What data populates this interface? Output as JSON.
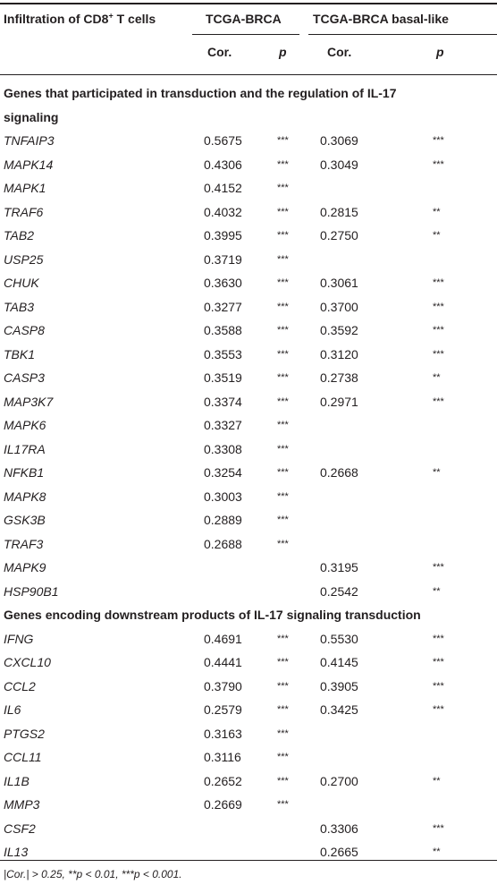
{
  "header": {
    "col0_text": "Infiltration of CD8",
    "col0_sup": "+",
    "col0_tail": " T cells",
    "group1": "TCGA-BRCA",
    "group2": "TCGA-BRCA basal-like",
    "cor_label": "Cor.",
    "p_label": "p"
  },
  "sections": [
    {
      "title_line1": "Genes that participated in transduction and the regulation of IL-17",
      "title_line2": "signaling",
      "rows": [
        {
          "gene": "TNFAIP3",
          "cor1": "0.5675",
          "p1": "***",
          "cor2": "0.3069",
          "p2": "***"
        },
        {
          "gene": "MAPK14",
          "cor1": "0.4306",
          "p1": "***",
          "cor2": "0.3049",
          "p2": "***"
        },
        {
          "gene": "MAPK1",
          "cor1": "0.4152",
          "p1": "***",
          "cor2": "",
          "p2": ""
        },
        {
          "gene": "TRAF6",
          "cor1": "0.4032",
          "p1": "***",
          "cor2": "0.2815",
          "p2": "**"
        },
        {
          "gene": "TAB2",
          "cor1": "0.3995",
          "p1": "***",
          "cor2": "0.2750",
          "p2": "**"
        },
        {
          "gene": "USP25",
          "cor1": "0.3719",
          "p1": "***",
          "cor2": "",
          "p2": ""
        },
        {
          "gene": "CHUK",
          "cor1": "0.3630",
          "p1": "***",
          "cor2": "0.3061",
          "p2": "***"
        },
        {
          "gene": "TAB3",
          "cor1": "0.3277",
          "p1": "***",
          "cor2": "0.3700",
          "p2": "***"
        },
        {
          "gene": "CASP8",
          "cor1": "0.3588",
          "p1": "***",
          "cor2": "0.3592",
          "p2": "***"
        },
        {
          "gene": "TBK1",
          "cor1": "0.3553",
          "p1": "***",
          "cor2": "0.3120",
          "p2": "***"
        },
        {
          "gene": "CASP3",
          "cor1": "0.3519",
          "p1": "***",
          "cor2": "0.2738",
          "p2": "**"
        },
        {
          "gene": "MAP3K7",
          "cor1": "0.3374",
          "p1": "***",
          "cor2": "0.2971",
          "p2": "***"
        },
        {
          "gene": "MAPK6",
          "cor1": "0.3327",
          "p1": "***",
          "cor2": "",
          "p2": ""
        },
        {
          "gene": "IL17RA",
          "cor1": "0.3308",
          "p1": "***",
          "cor2": "",
          "p2": ""
        },
        {
          "gene": "NFKB1",
          "cor1": "0.3254",
          "p1": "***",
          "cor2": "0.2668",
          "p2": "**"
        },
        {
          "gene": "MAPK8",
          "cor1": "0.3003",
          "p1": "***",
          "cor2": "",
          "p2": ""
        },
        {
          "gene": "GSK3B",
          "cor1": "0.2889",
          "p1": "***",
          "cor2": "",
          "p2": ""
        },
        {
          "gene": "TRAF3",
          "cor1": "0.2688",
          "p1": "***",
          "cor2": "",
          "p2": ""
        },
        {
          "gene": "MAPK9",
          "cor1": "",
          "p1": "",
          "cor2": "0.3195",
          "p2": "***"
        },
        {
          "gene": "HSP90B1",
          "cor1": "",
          "p1": "",
          "cor2": "0.2542",
          "p2": "**"
        }
      ]
    },
    {
      "title_line1": "Genes encoding downstream products of IL-17 signaling transduction",
      "title_line2": "",
      "rows": [
        {
          "gene": "IFNG",
          "cor1": "0.4691",
          "p1": "***",
          "cor2": "0.5530",
          "p2": "***"
        },
        {
          "gene": "CXCL10",
          "cor1": "0.4441",
          "p1": "***",
          "cor2": "0.4145",
          "p2": "***"
        },
        {
          "gene": "CCL2",
          "cor1": "0.3790",
          "p1": "***",
          "cor2": "0.3905",
          "p2": "***"
        },
        {
          "gene": "IL6",
          "cor1": "0.2579",
          "p1": "***",
          "cor2": "0.3425",
          "p2": "***"
        },
        {
          "gene": "PTGS2",
          "cor1": "0.3163",
          "p1": "***",
          "cor2": "",
          "p2": ""
        },
        {
          "gene": "CCL11",
          "cor1": "0.3116",
          "p1": "***",
          "cor2": "",
          "p2": ""
        },
        {
          "gene": "IL1B",
          "cor1": "0.2652",
          "p1": "***",
          "cor2": "0.2700",
          "p2": "**"
        },
        {
          "gene": "MMP3",
          "cor1": "0.2669",
          "p1": "***",
          "cor2": "",
          "p2": ""
        },
        {
          "gene": "CSF2",
          "cor1": "",
          "p1": "",
          "cor2": "0.3306",
          "p2": "***"
        },
        {
          "gene": "IL13",
          "cor1": "",
          "p1": "",
          "cor2": "0.2665",
          "p2": "**"
        }
      ]
    }
  ],
  "footnote": "|Cor.| > 0.25, **p < 0.01, ***p < 0.001."
}
